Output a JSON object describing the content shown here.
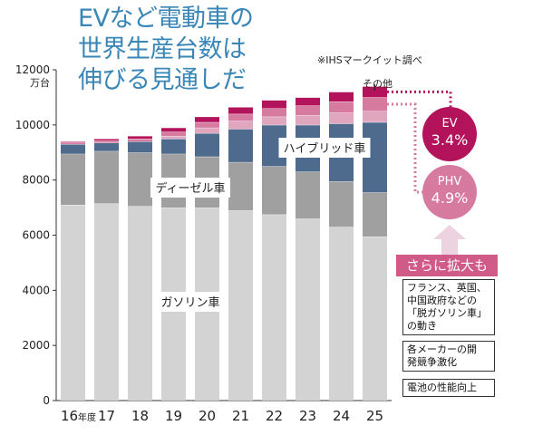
{
  "title_lines": [
    "EVなど電動車の",
    "世界生産台数は",
    "伸びる見通しだ"
  ],
  "source": "※IHSマークイット調べ",
  "chart_data": {
    "type": "bar",
    "stacked": true,
    "y_unit": "万台",
    "ylim": [
      0,
      12000
    ],
    "yticks": [
      0,
      2000,
      4000,
      6000,
      8000,
      10000,
      12000
    ],
    "categories": [
      "16",
      "17",
      "18",
      "19",
      "20",
      "21",
      "22",
      "23",
      "24",
      "25"
    ],
    "first_category_suffix": "年度",
    "series": [
      {
        "name": "ガソリン車",
        "color": "#d3d3d3",
        "values": [
          7100,
          7150,
          7050,
          7000,
          7000,
          6900,
          6750,
          6600,
          6300,
          5950
        ]
      },
      {
        "name": "ディーゼル車",
        "color": "#a0a0a0",
        "values": [
          1850,
          1900,
          1950,
          1950,
          1850,
          1750,
          1750,
          1700,
          1650,
          1600
        ]
      },
      {
        "name": "ハイブリッド車",
        "color": "#4e6b8d",
        "values": [
          350,
          300,
          400,
          550,
          850,
          1200,
          1500,
          1700,
          2100,
          2550
        ]
      },
      {
        "name": "その他",
        "color": "#e0a6be",
        "values": [
          0,
          0,
          0,
          100,
          200,
          300,
          300,
          350,
          400,
          400
        ]
      },
      {
        "name": "",
        "color": "#d67aa0",
        "values": [
          60,
          80,
          100,
          150,
          200,
          250,
          300,
          350,
          400,
          500
        ]
      },
      {
        "name": "",
        "color": "#b3135a",
        "values": [
          40,
          70,
          100,
          150,
          200,
          250,
          300,
          300,
          350,
          400
        ]
      }
    ],
    "label_other": "その他"
  },
  "bubbles": {
    "ev": {
      "name": "EV",
      "value": "3.4%",
      "color": "#b3135a"
    },
    "phv": {
      "name": "PHV",
      "value": "4.9%",
      "color": "#d67aa0"
    }
  },
  "expand": {
    "title": "さらに拡大も",
    "items": [
      [
        "フランス、英国、",
        "中国政府などの",
        "「脱ガソリン車」",
        "の動き"
      ],
      [
        "各メーカーの開",
        "発競争激化"
      ],
      [
        "電池の性能向上"
      ]
    ]
  }
}
